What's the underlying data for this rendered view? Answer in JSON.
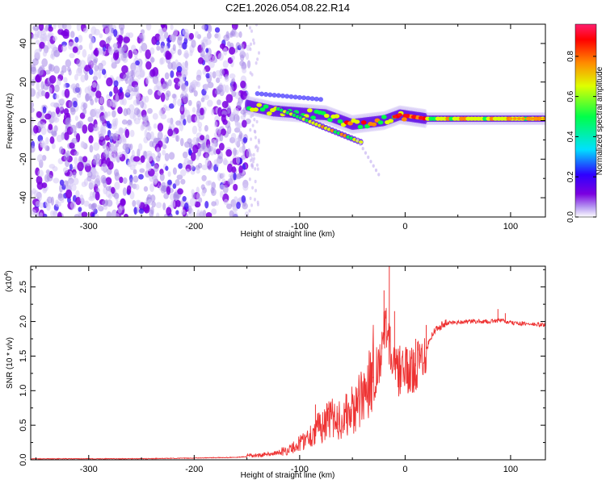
{
  "title": "C2E1.2026.054.08.22.R14",
  "chart_data": [
    {
      "type": "heatmap",
      "name": "spectrogram",
      "xlabel": "Height of straight line (km)",
      "ylabel": "Frequency (Hz)",
      "xlim": [
        -355,
        133
      ],
      "ylim": [
        -50,
        50
      ],
      "xticks": [
        "-300",
        "-200",
        "-100",
        "0",
        "100"
      ],
      "xtick_values": [
        -300,
        -200,
        -100,
        0,
        100
      ],
      "yticks": [
        "40",
        "20",
        "0",
        "-20",
        "-40"
      ],
      "ytick_values": [
        40,
        20,
        0,
        -20,
        -40
      ],
      "noise_region": {
        "x": [
          -355,
          -148
        ],
        "y": [
          -50,
          50
        ]
      },
      "carrier_trend": [
        {
          "x": -150,
          "y": 8
        },
        {
          "x": -125,
          "y": 5
        },
        {
          "x": -100,
          "y": 4
        },
        {
          "x": -75,
          "y": 3
        },
        {
          "x": -50,
          "y": -2
        },
        {
          "x": -35,
          "y": -1
        },
        {
          "x": -20,
          "y": 0
        },
        {
          "x": -5,
          "y": 3
        },
        {
          "x": 20,
          "y": 1
        },
        {
          "x": 60,
          "y": 1
        },
        {
          "x": 133,
          "y": 1
        }
      ],
      "colorbar": {
        "label": "Normalized spectral amplitude",
        "ticks": [
          "0.0",
          "0.2",
          "0.4",
          "0.6",
          "0.8"
        ],
        "tick_values": [
          0.0,
          0.2,
          0.4,
          0.6,
          0.8
        ],
        "range": [
          0,
          0.96
        ],
        "colors": [
          "#ffffff",
          "#b89cf2",
          "#7b00e0",
          "#2e00ff",
          "#00e0ff",
          "#00ff4a",
          "#dfff00",
          "#ff8a00",
          "#ff0000",
          "#ff1e6e"
        ]
      }
    },
    {
      "type": "line",
      "name": "snr",
      "xlabel": "Height of straight line (km)",
      "ylabel": "SNR (10 * v/v)",
      "yscale_label": "(x10",
      "yscale_exp": "4",
      "yscale_close": ")",
      "xlim": [
        -355,
        133
      ],
      "ylim": [
        0,
        2.8
      ],
      "xticks": [
        "-300",
        "-200",
        "-100",
        "0",
        "100"
      ],
      "xtick_values": [
        -300,
        -200,
        -100,
        0,
        100
      ],
      "yticks": [
        "0.0",
        "0.5",
        "1.0",
        "1.5",
        "2.0",
        "2.5"
      ],
      "ytick_values": [
        0.0,
        0.5,
        1.0,
        1.5,
        2.0,
        2.5
      ],
      "color": "#ee3333",
      "series": [
        {
          "name": "SNR",
          "x": [
            -355,
            -300,
            -250,
            -200,
            -160,
            -140,
            -125,
            -110,
            -100,
            -90,
            -80,
            -70,
            -60,
            -50,
            -40,
            -32,
            -26,
            -22,
            -18,
            -14,
            -10,
            -5,
            0,
            5,
            10,
            15,
            20,
            25,
            30,
            35,
            40,
            60,
            80,
            90,
            100,
            120,
            133
          ],
          "y": [
            0.01,
            0.01,
            0.01,
            0.02,
            0.03,
            0.05,
            0.08,
            0.12,
            0.2,
            0.3,
            0.42,
            0.5,
            0.5,
            0.6,
            0.75,
            1.1,
            1.35,
            1.6,
            2.0,
            1.6,
            1.3,
            1.25,
            1.3,
            1.25,
            1.35,
            1.45,
            1.6,
            1.8,
            1.9,
            1.95,
            1.98,
            2.0,
            2.0,
            2.02,
            1.98,
            1.96,
            1.95
          ],
          "spikes": [
            {
              "x": -85,
              "y": 0.8
            },
            {
              "x": -73,
              "y": 0.7
            },
            {
              "x": -64,
              "y": 0.68
            },
            {
              "x": -45,
              "y": 0.9
            },
            {
              "x": -30,
              "y": 1.2
            },
            {
              "x": -22,
              "y": 1.85
            },
            {
              "x": -20,
              "y": 2.45
            },
            {
              "x": -15,
              "y": 2.8
            },
            {
              "x": -10,
              "y": 2.15
            },
            {
              "x": -5,
              "y": 1.65
            },
            {
              "x": 2,
              "y": 1.6
            },
            {
              "x": 10,
              "y": 1.75
            },
            {
              "x": 20,
              "y": 1.95
            },
            {
              "x": 88,
              "y": 2.18
            },
            {
              "x": 95,
              "y": 2.12
            }
          ]
        }
      ]
    }
  ]
}
